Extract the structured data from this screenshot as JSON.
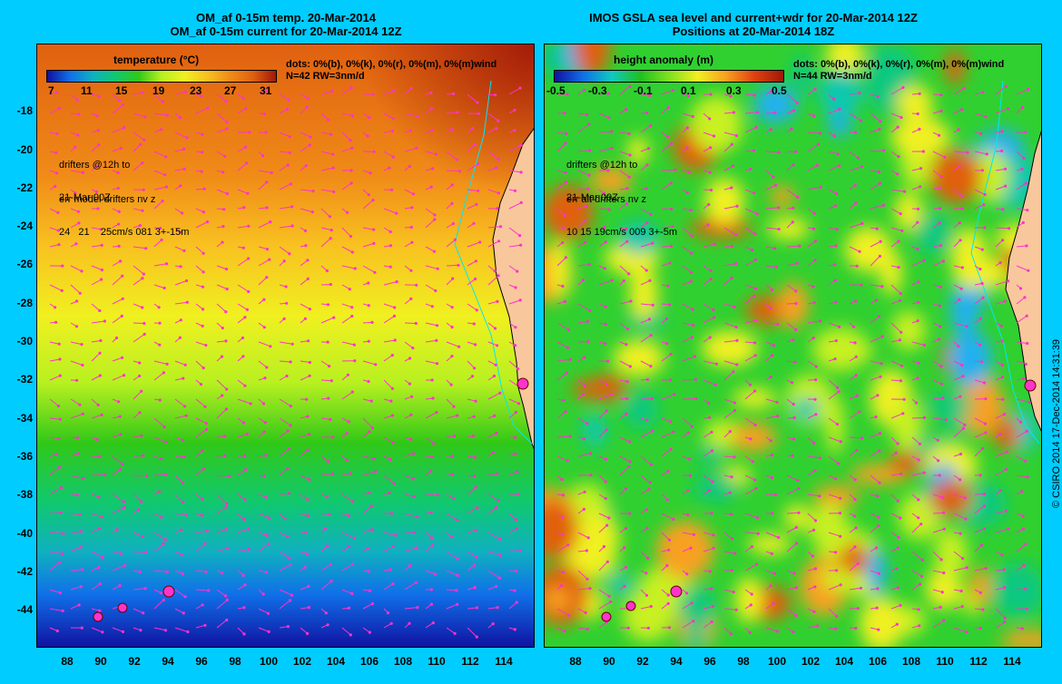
{
  "left": {
    "title_line1": "OM_af 0-15m temp. 20-Mar-2014",
    "title_line2": "OM_af 0-15m current for 20-Mar-2014 12Z",
    "colorbar_title": "temperature (°C)",
    "colorbar_ticks": [
      "7",
      "11",
      "15",
      "19",
      "23",
      "27",
      "31"
    ],
    "dots_line": "dots: 0%(b), 0%(k), 0%(r), 0%(m), 0%(m)wind",
    "n_line": "N=42 RW=3nm/d",
    "drifters_line1": "drifters @12h to",
    "drifters_line2": "21-Mar 00Z",
    "err_line1": "err model drifters nv z",
    "err_line2": "24   21    25cm/s 081 3+-15m"
  },
  "right": {
    "title_line1": "IMOS GSLA sea level and current+wdr for 20-Mar-2014 12Z",
    "title_line2": "Positions at 20-Mar-2014 18Z",
    "colorbar_title": "height anomaly  (m)",
    "colorbar_ticks": [
      "-0.5",
      "-0.3",
      "-0.1",
      "0.1",
      "0.3",
      "0.5"
    ],
    "dots_line": "dots: 0%(b), 0%(k), 0%(r), 0%(m), 0%(m)wind",
    "n_line": "N=44 RW=3nm/d",
    "drifters_line1": "drifters @12h to",
    "drifters_line2": "21-Mar 00Z",
    "err_line1": "err alt drifters nv z",
    "err_line2": "10 15 19cm/s 009 3+-5m"
  },
  "y_axis_labels": [
    "-18",
    "-20",
    "-22",
    "-24",
    "-26",
    "-28",
    "-30",
    "-32",
    "-34",
    "-36",
    "-38",
    "-40",
    "-42",
    "-44"
  ],
  "x_axis_labels": [
    "88",
    "90",
    "92",
    "94",
    "96",
    "98",
    "100",
    "102",
    "104",
    "106",
    "108",
    "110",
    "112",
    "114"
  ],
  "credit": "© CSIRO 2014   17-Dec-2014 14:31:39",
  "colors": {
    "background": "#00ccff",
    "land": "#f9c79c",
    "arrows": "#ff33cc",
    "coast_line": "#00e5ff"
  }
}
